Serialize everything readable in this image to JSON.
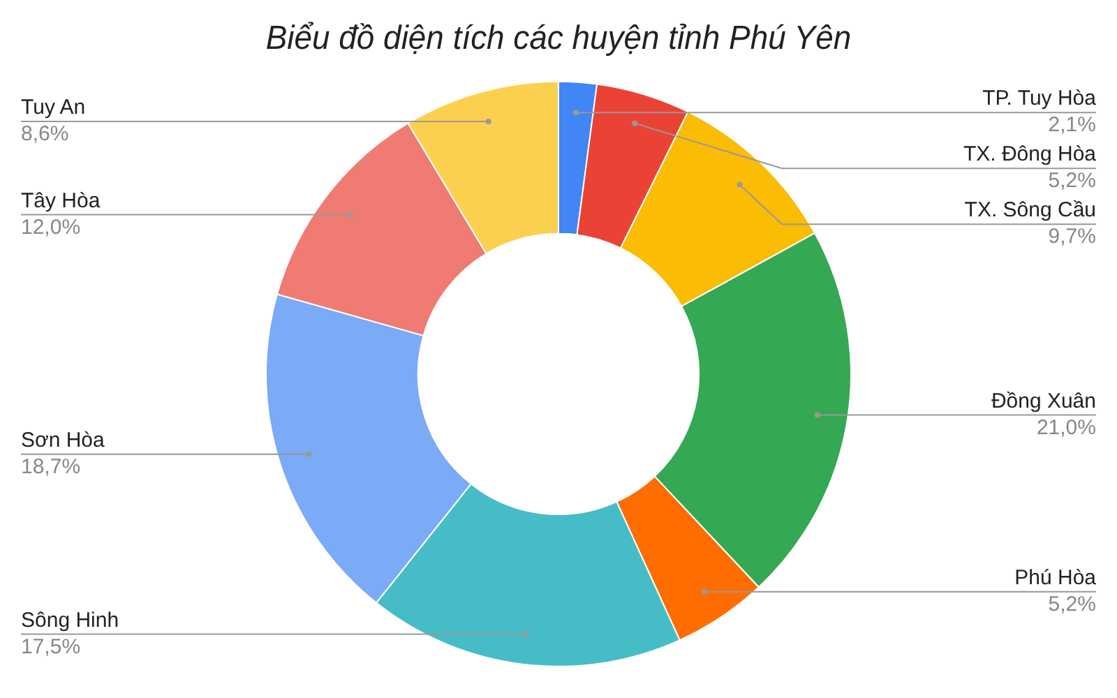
{
  "chart_data": {
    "type": "donut",
    "title": "Biểu đồ diện tích các huyện tỉnh Phú Yên",
    "categories": [
      "TP. Tuy Hòa",
      "TX. Đông Hòa",
      "TX. Sông Cầu",
      "Đồng Xuân",
      "Phú Hòa",
      "Sông Hinh",
      "Sơn Hòa",
      "Tây Hòa",
      "Tuy An"
    ],
    "values": [
      2.1,
      5.2,
      9.7,
      21.0,
      5.2,
      17.5,
      18.7,
      12.0,
      8.6
    ],
    "colors": [
      "#4285f4",
      "#ea4335",
      "#fbbc04",
      "#34a853",
      "#ff6d01",
      "#46bdc6",
      "#7baaf7",
      "#f07b72",
      "#fcd04f"
    ],
    "value_labels": [
      "2,1%",
      "5,2%",
      "9,7%",
      "21,0%",
      "5,2%",
      "17,5%",
      "18,7%",
      "12,0%",
      "8,6%"
    ],
    "legend": false
  }
}
